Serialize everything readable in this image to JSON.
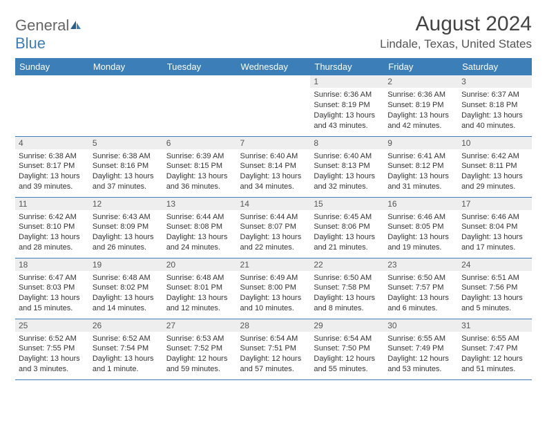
{
  "logo": {
    "text1": "General",
    "text2": "Blue"
  },
  "title": "August 2024",
  "location": "Lindale, Texas, United States",
  "colors": {
    "header_bg": "#3b7eb8",
    "header_text": "#ffffff",
    "daynum_bg": "#eeeeee",
    "border": "#3b7eb8",
    "text": "#333333"
  },
  "typography": {
    "title_fontsize": 30,
    "location_fontsize": 17,
    "dayheader_fontsize": 13,
    "body_fontsize": 11
  },
  "weekdays": [
    "Sunday",
    "Monday",
    "Tuesday",
    "Wednesday",
    "Thursday",
    "Friday",
    "Saturday"
  ],
  "weeks": [
    [
      null,
      null,
      null,
      null,
      {
        "n": "1",
        "sunrise": "6:36 AM",
        "sunset": "8:19 PM",
        "dl": "13 hours and 43 minutes."
      },
      {
        "n": "2",
        "sunrise": "6:36 AM",
        "sunset": "8:19 PM",
        "dl": "13 hours and 42 minutes."
      },
      {
        "n": "3",
        "sunrise": "6:37 AM",
        "sunset": "8:18 PM",
        "dl": "13 hours and 40 minutes."
      }
    ],
    [
      {
        "n": "4",
        "sunrise": "6:38 AM",
        "sunset": "8:17 PM",
        "dl": "13 hours and 39 minutes."
      },
      {
        "n": "5",
        "sunrise": "6:38 AM",
        "sunset": "8:16 PM",
        "dl": "13 hours and 37 minutes."
      },
      {
        "n": "6",
        "sunrise": "6:39 AM",
        "sunset": "8:15 PM",
        "dl": "13 hours and 36 minutes."
      },
      {
        "n": "7",
        "sunrise": "6:40 AM",
        "sunset": "8:14 PM",
        "dl": "13 hours and 34 minutes."
      },
      {
        "n": "8",
        "sunrise": "6:40 AM",
        "sunset": "8:13 PM",
        "dl": "13 hours and 32 minutes."
      },
      {
        "n": "9",
        "sunrise": "6:41 AM",
        "sunset": "8:12 PM",
        "dl": "13 hours and 31 minutes."
      },
      {
        "n": "10",
        "sunrise": "6:42 AM",
        "sunset": "8:11 PM",
        "dl": "13 hours and 29 minutes."
      }
    ],
    [
      {
        "n": "11",
        "sunrise": "6:42 AM",
        "sunset": "8:10 PM",
        "dl": "13 hours and 28 minutes."
      },
      {
        "n": "12",
        "sunrise": "6:43 AM",
        "sunset": "8:09 PM",
        "dl": "13 hours and 26 minutes."
      },
      {
        "n": "13",
        "sunrise": "6:44 AM",
        "sunset": "8:08 PM",
        "dl": "13 hours and 24 minutes."
      },
      {
        "n": "14",
        "sunrise": "6:44 AM",
        "sunset": "8:07 PM",
        "dl": "13 hours and 22 minutes."
      },
      {
        "n": "15",
        "sunrise": "6:45 AM",
        "sunset": "8:06 PM",
        "dl": "13 hours and 21 minutes."
      },
      {
        "n": "16",
        "sunrise": "6:46 AM",
        "sunset": "8:05 PM",
        "dl": "13 hours and 19 minutes."
      },
      {
        "n": "17",
        "sunrise": "6:46 AM",
        "sunset": "8:04 PM",
        "dl": "13 hours and 17 minutes."
      }
    ],
    [
      {
        "n": "18",
        "sunrise": "6:47 AM",
        "sunset": "8:03 PM",
        "dl": "13 hours and 15 minutes."
      },
      {
        "n": "19",
        "sunrise": "6:48 AM",
        "sunset": "8:02 PM",
        "dl": "13 hours and 14 minutes."
      },
      {
        "n": "20",
        "sunrise": "6:48 AM",
        "sunset": "8:01 PM",
        "dl": "13 hours and 12 minutes."
      },
      {
        "n": "21",
        "sunrise": "6:49 AM",
        "sunset": "8:00 PM",
        "dl": "13 hours and 10 minutes."
      },
      {
        "n": "22",
        "sunrise": "6:50 AM",
        "sunset": "7:58 PM",
        "dl": "13 hours and 8 minutes."
      },
      {
        "n": "23",
        "sunrise": "6:50 AM",
        "sunset": "7:57 PM",
        "dl": "13 hours and 6 minutes."
      },
      {
        "n": "24",
        "sunrise": "6:51 AM",
        "sunset": "7:56 PM",
        "dl": "13 hours and 5 minutes."
      }
    ],
    [
      {
        "n": "25",
        "sunrise": "6:52 AM",
        "sunset": "7:55 PM",
        "dl": "13 hours and 3 minutes."
      },
      {
        "n": "26",
        "sunrise": "6:52 AM",
        "sunset": "7:54 PM",
        "dl": "13 hours and 1 minute."
      },
      {
        "n": "27",
        "sunrise": "6:53 AM",
        "sunset": "7:52 PM",
        "dl": "12 hours and 59 minutes."
      },
      {
        "n": "28",
        "sunrise": "6:54 AM",
        "sunset": "7:51 PM",
        "dl": "12 hours and 57 minutes."
      },
      {
        "n": "29",
        "sunrise": "6:54 AM",
        "sunset": "7:50 PM",
        "dl": "12 hours and 55 minutes."
      },
      {
        "n": "30",
        "sunrise": "6:55 AM",
        "sunset": "7:49 PM",
        "dl": "12 hours and 53 minutes."
      },
      {
        "n": "31",
        "sunrise": "6:55 AM",
        "sunset": "7:47 PM",
        "dl": "12 hours and 51 minutes."
      }
    ]
  ],
  "labels": {
    "sunrise": "Sunrise:",
    "sunset": "Sunset:",
    "daylight": "Daylight:"
  }
}
